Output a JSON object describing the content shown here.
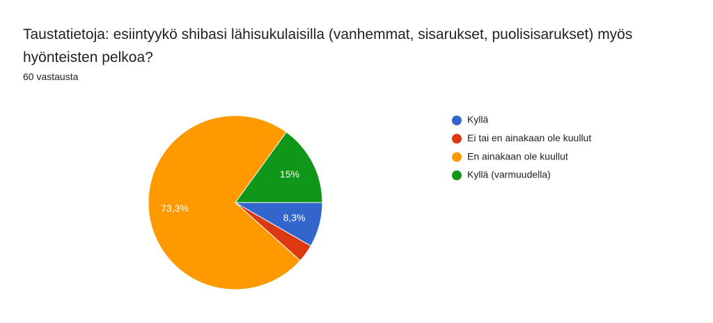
{
  "chart_data": {
    "type": "pie",
    "title": "Taustatietoja: esiintyykö shibasi lähisukulaisilla (vanhemmat,  sisarukset, puolisisarukset) myös hyönteisten pelkoa?",
    "subtitle": "60 vastausta",
    "categories": [
      "Kyllä",
      "Ei tai en ainakaan ole kuullut",
      "En ainakaan ole kuullut",
      "Kyllä (varmuudella)"
    ],
    "values": [
      8.3,
      3.3,
      73.3,
      15
    ],
    "value_labels": [
      "8,3%",
      null,
      "73,3%",
      "15%"
    ],
    "colors": [
      "#3366cc",
      "#dc3912",
      "#ff9900",
      "#109618"
    ]
  }
}
